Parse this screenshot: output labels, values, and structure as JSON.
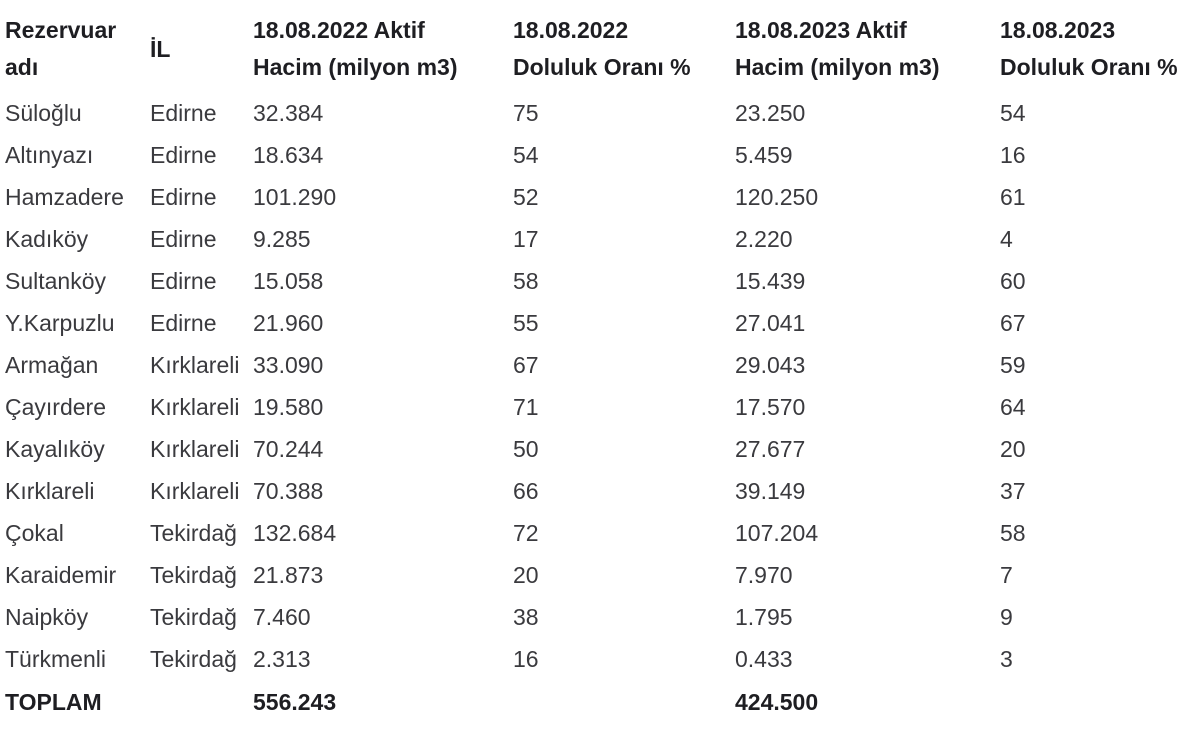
{
  "table": {
    "columns": [
      {
        "id": "reservoir-name",
        "label": "Rezervuar\nadı"
      },
      {
        "id": "province",
        "label": "İL"
      },
      {
        "id": "active-volume-2022",
        "label": "18.08.2022 Aktif\nHacim (milyon m3)"
      },
      {
        "id": "fill-rate-2022",
        "label": "18.08.2022\nDoluluk Oranı %"
      },
      {
        "id": "active-volume-2023",
        "label": "18.08.2023 Aktif\nHacim (milyon m3)"
      },
      {
        "id": "fill-rate-2023",
        "label": "18.08.2023\nDoluluk Oranı %"
      }
    ],
    "rows": [
      [
        "Süloğlu",
        "Edirne",
        "32.384",
        "75",
        "23.250",
        "54"
      ],
      [
        "Altınyazı",
        "Edirne",
        "18.634",
        "54",
        "5.459",
        "16"
      ],
      [
        "Hamzadere",
        "Edirne",
        "101.290",
        "52",
        "120.250",
        "61"
      ],
      [
        "Kadıköy",
        "Edirne",
        "9.285",
        "17",
        "2.220",
        "4"
      ],
      [
        "Sultanköy",
        "Edirne",
        "15.058",
        "58",
        "15.439",
        "60"
      ],
      [
        "Y.Karpuzlu",
        "Edirne",
        "21.960",
        "55",
        "27.041",
        "67"
      ],
      [
        "Armağan",
        "Kırklareli",
        "33.090",
        "67",
        "29.043",
        "59"
      ],
      [
        "Çayırdere",
        "Kırklareli",
        "19.580",
        "71",
        "17.570",
        "64"
      ],
      [
        "Kayalıköy",
        "Kırklareli",
        "70.244",
        "50",
        "27.677",
        "20"
      ],
      [
        "Kırklareli",
        "Kırklareli",
        "70.388",
        "66",
        "39.149",
        "37"
      ],
      [
        "Çokal",
        "Tekirdağ",
        "132.684",
        "72",
        "107.204",
        "58"
      ],
      [
        "Karaidemir",
        "Tekirdağ",
        "21.873",
        "20",
        "7.970",
        "7"
      ],
      [
        "Naipköy",
        "Tekirdağ",
        "7.460",
        "38",
        "1.795",
        "9"
      ],
      [
        "Türkmenli",
        "Tekirdağ",
        "2.313",
        "16",
        "0.433",
        "3"
      ]
    ],
    "total_row": [
      "TOPLAM",
      "",
      "556.243",
      "",
      "424.500",
      ""
    ]
  },
  "chart_data": {
    "type": "table",
    "title": "",
    "columns": [
      "Rezervuar adı",
      "İL",
      "18.08.2022 Aktif Hacim (milyon m3)",
      "18.08.2022 Doluluk Oranı %",
      "18.08.2023 Aktif Hacim (milyon m3)",
      "18.08.2023 Doluluk Oranı %"
    ],
    "rows": [
      [
        "Süloğlu",
        "Edirne",
        32.384,
        75,
        23.25,
        54
      ],
      [
        "Altınyazı",
        "Edirne",
        18.634,
        54,
        5.459,
        16
      ],
      [
        "Hamzadere",
        "Edirne",
        101.29,
        52,
        120.25,
        61
      ],
      [
        "Kadıköy",
        "Edirne",
        9.285,
        17,
        2.22,
        4
      ],
      [
        "Sultanköy",
        "Edirne",
        15.058,
        58,
        15.439,
        60
      ],
      [
        "Y.Karpuzlu",
        "Edirne",
        21.96,
        55,
        27.041,
        67
      ],
      [
        "Armağan",
        "Kırklareli",
        33.09,
        67,
        29.043,
        59
      ],
      [
        "Çayırdere",
        "Kırklareli",
        19.58,
        71,
        17.57,
        64
      ],
      [
        "Kayalıköy",
        "Kırklareli",
        70.244,
        50,
        27.677,
        20
      ],
      [
        "Kırklareli",
        "Kırklareli",
        70.388,
        66,
        39.149,
        37
      ],
      [
        "Çokal",
        "Tekirdağ",
        132.684,
        72,
        107.204,
        58
      ],
      [
        "Karaidemir",
        "Tekirdağ",
        21.873,
        20,
        7.97,
        7
      ],
      [
        "Naipköy",
        "Tekirdağ",
        7.46,
        38,
        1.795,
        9
      ],
      [
        "Türkmenli",
        "Tekirdağ",
        2.313,
        16,
        0.433,
        3
      ]
    ],
    "totals": {
      "label": "TOPLAM",
      "active_volume_2022": 556.243,
      "active_volume_2023": 424.5
    }
  },
  "colors": {
    "background": "#ffffff",
    "header_text": "#1e1e22",
    "body_text": "#3a3a3e"
  }
}
